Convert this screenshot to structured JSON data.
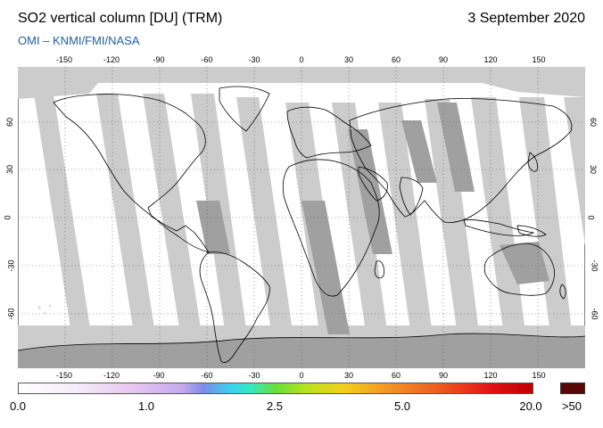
{
  "header": {
    "title": "SO2 vertical column [DU] (TRM)",
    "date": "3 September 2020",
    "source": "OMI  –  KNMI/FMI/NASA"
  },
  "map": {
    "projection": "equirectangular",
    "longitude_ticks": [
      "-150",
      "-120",
      "-90",
      "-60",
      "-30",
      "0",
      "30",
      "60",
      "90",
      "120",
      "150"
    ],
    "latitude_ticks": [
      "60",
      "30",
      "0",
      "-30",
      "-60"
    ],
    "colors": {
      "background": "#ffffff",
      "missing_data": "#cccccc",
      "land_no_data": "#a0a0a0",
      "coastline": "#000000",
      "grid": "#555555"
    }
  },
  "colorbar": {
    "labels": [
      "0.0",
      "1.0",
      "2.5",
      "5.0",
      "20.0",
      ">50"
    ],
    "overflow_color": "#5a0707"
  }
}
